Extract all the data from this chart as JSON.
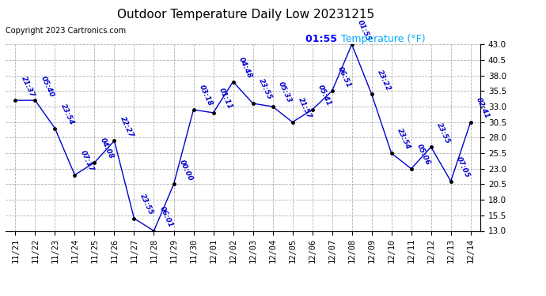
{
  "title": "Outdoor Temperature Daily Low 20231215",
  "copyright": "Copyright 2023 Cartronics.com",
  "legend_time": "01:55",
  "legend_label": "Temperature (°F)",
  "background_color": "#ffffff",
  "plot_bg_color": "#ffffff",
  "grid_color": "#b0b0b0",
  "line_color": "#0000cc",
  "text_color": "#0000cc",
  "marker_color": "#000000",
  "legend_time_color": "#0000ff",
  "legend_label_color": "#00aaff",
  "ylim": [
    13.0,
    43.0
  ],
  "yticks": [
    13.0,
    15.5,
    18.0,
    20.5,
    23.0,
    25.5,
    28.0,
    30.5,
    33.0,
    35.5,
    38.0,
    40.5,
    43.0
  ],
  "dates": [
    "11/21",
    "11/22",
    "11/23",
    "11/24",
    "11/25",
    "11/26",
    "11/27",
    "11/28",
    "11/29",
    "11/30",
    "12/01",
    "12/02",
    "12/03",
    "12/04",
    "12/05",
    "12/06",
    "12/07",
    "12/08",
    "12/09",
    "12/10",
    "12/11",
    "12/12",
    "12/13",
    "12/14"
  ],
  "values": [
    34.0,
    34.0,
    29.5,
    22.0,
    24.0,
    27.5,
    15.0,
    13.0,
    20.5,
    32.5,
    32.0,
    37.0,
    33.5,
    33.0,
    30.5,
    32.5,
    35.5,
    43.0,
    35.0,
    25.5,
    23.0,
    26.5,
    21.0,
    30.5
  ],
  "annotations": [
    "21:37",
    "05:40",
    "23:54",
    "07:17",
    "04:08",
    "22:27",
    "23:55",
    "06:01",
    "00:00",
    "03:18",
    "01:11",
    "04:48",
    "23:55",
    "05:33",
    "21:57",
    "05:41",
    "06:51",
    "01:55",
    "23:22",
    "23:54",
    "05:06",
    "23:55",
    "07:05",
    "02:41"
  ],
  "title_fontsize": 11,
  "copyright_fontsize": 7,
  "annotation_fontsize": 6.5,
  "tick_fontsize": 7.5,
  "legend_fontsize": 9
}
